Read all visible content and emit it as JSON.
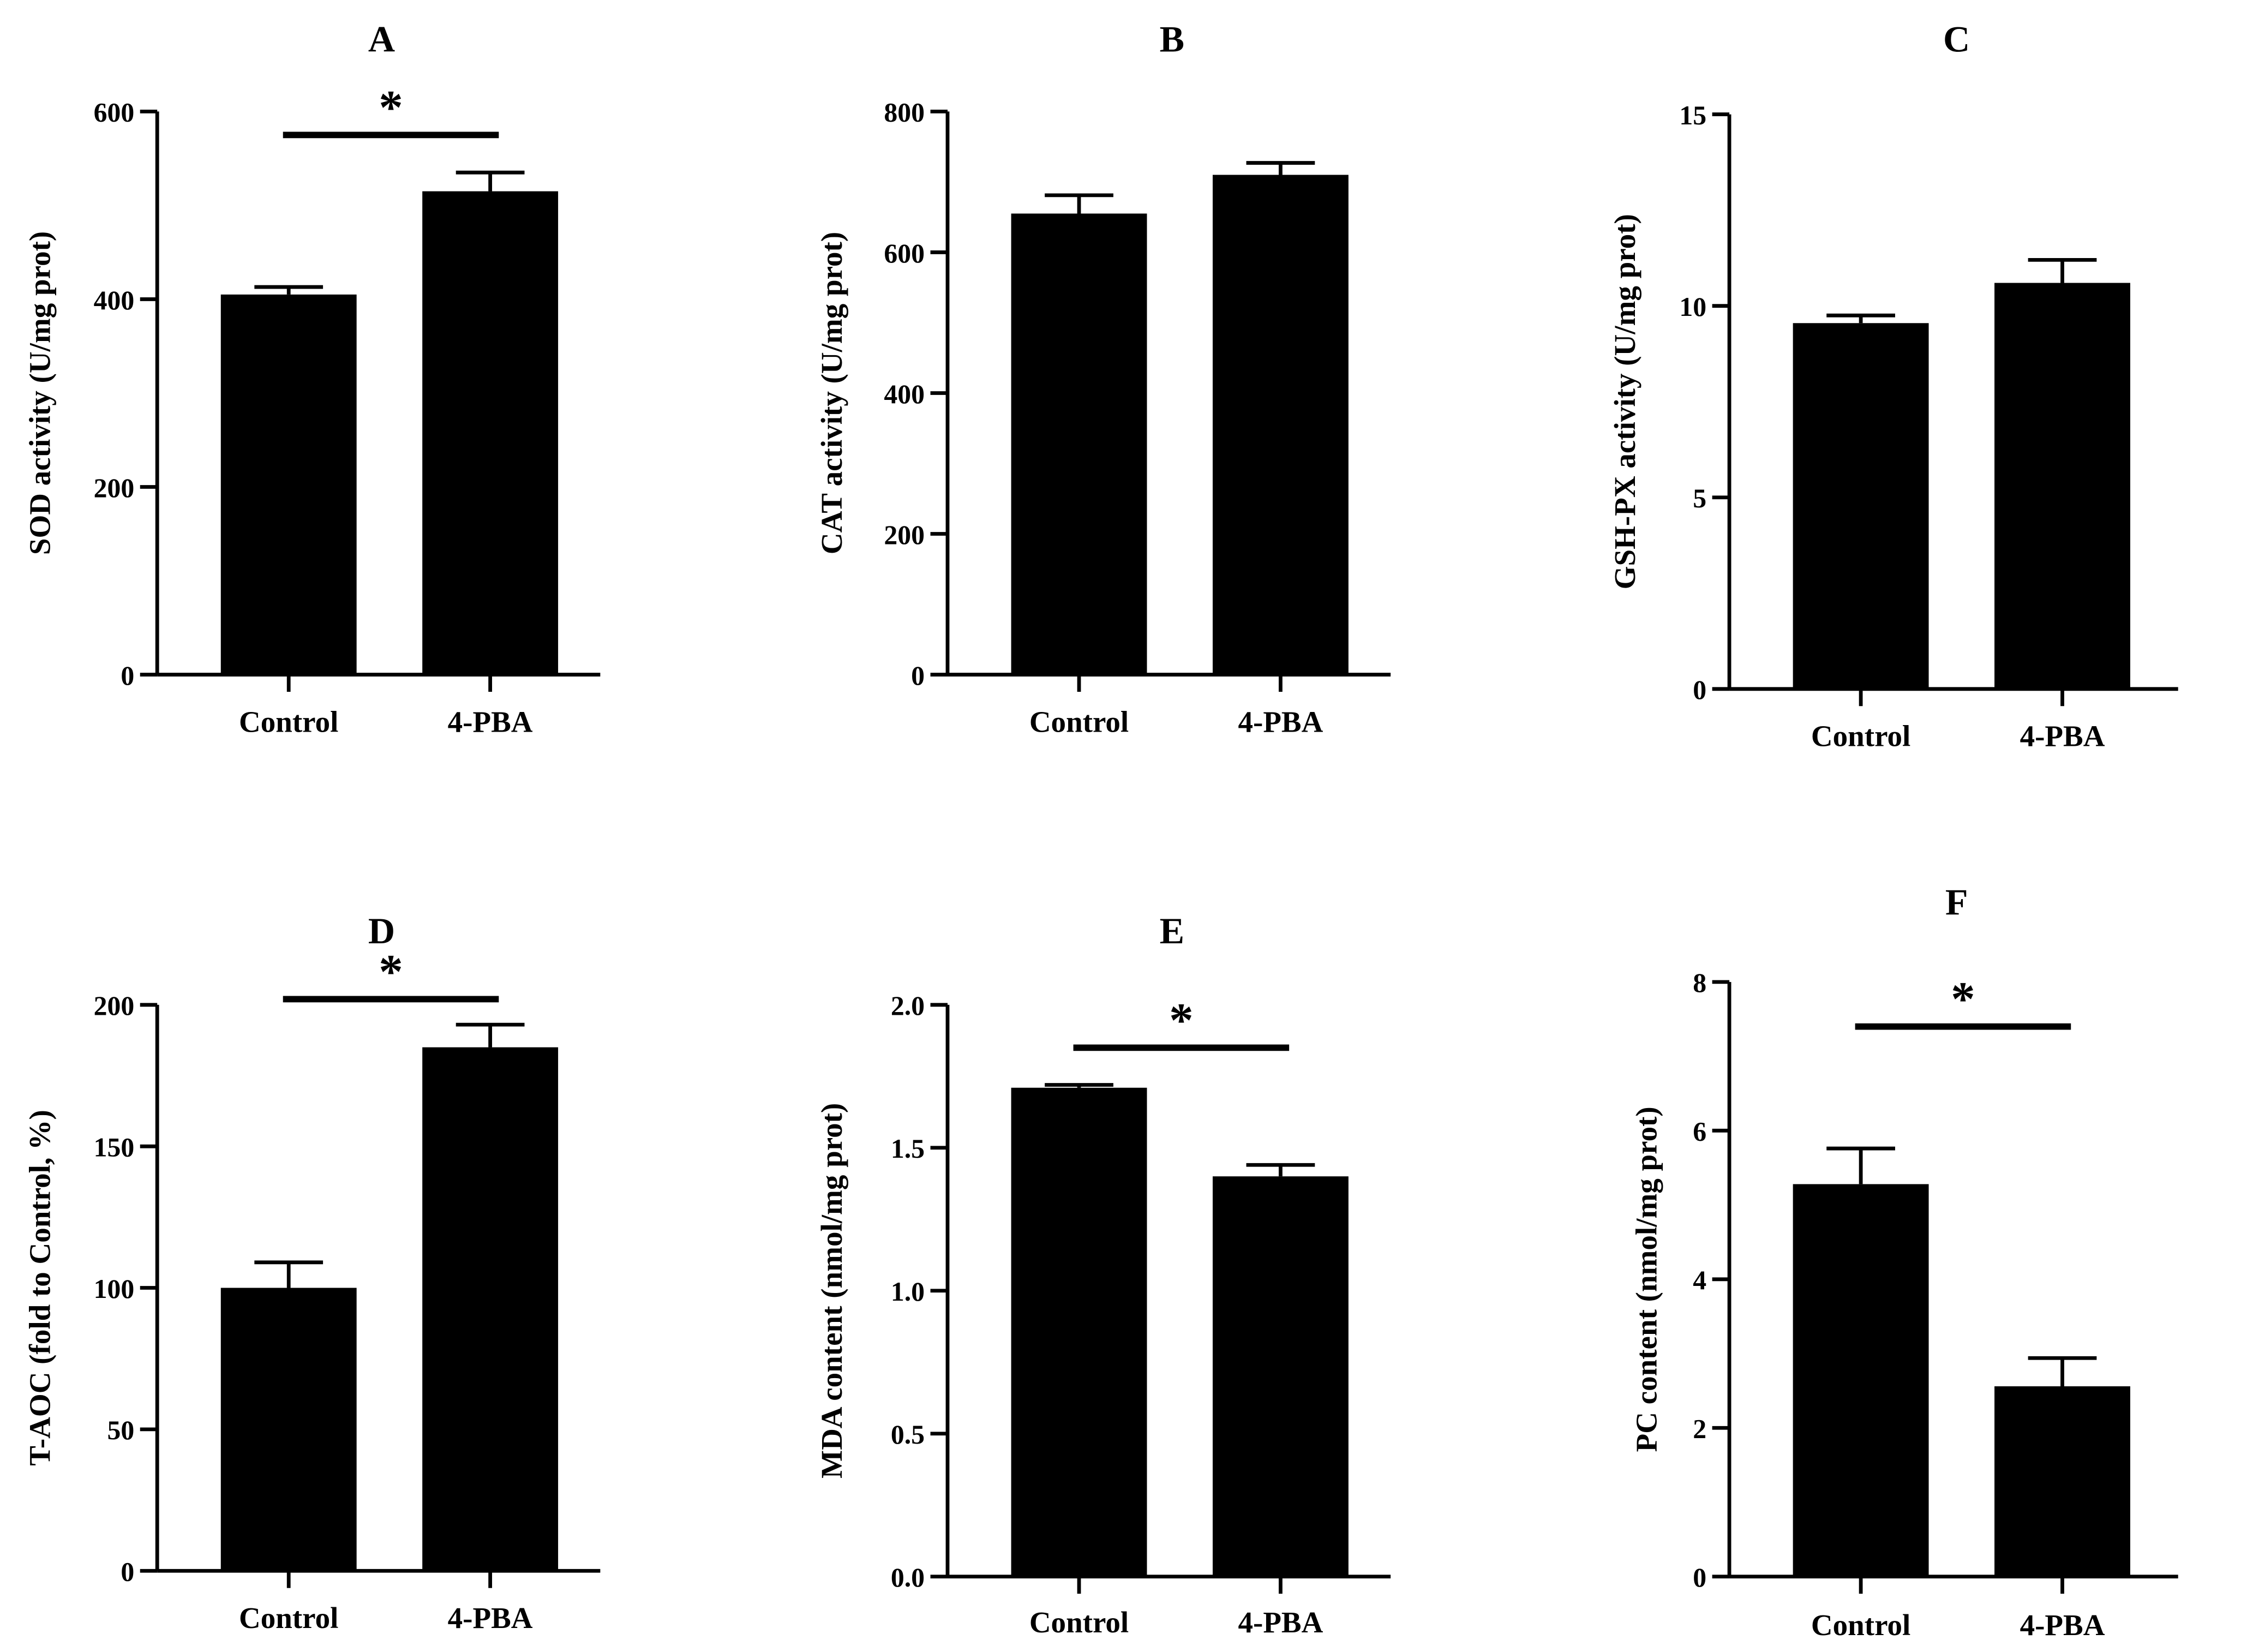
{
  "figure": {
    "panels_count": 6,
    "bar_color": "#000000",
    "background": "#ffffff"
  },
  "chart_data": [
    {
      "panel": "A",
      "type": "bar",
      "title": "A",
      "xlabel": "",
      "ylabel": "SOD activity  (U/mg prot)",
      "categories": [
        "Control",
        "4-PBA"
      ],
      "values": [
        405,
        515
      ],
      "errors": [
        8,
        20
      ],
      "ylim": [
        0,
        600
      ],
      "yticks": [
        0,
        200,
        400,
        600
      ],
      "ytick_labels": [
        "0",
        "200",
        "400",
        "600"
      ],
      "significance": [
        {
          "from": 0,
          "to": 1,
          "label": "*",
          "y": 575
        }
      ],
      "grid": false
    },
    {
      "panel": "B",
      "type": "bar",
      "title": "B",
      "xlabel": "",
      "ylabel": "CAT activity (U/mg prot)",
      "categories": [
        "Control",
        "4-PBA"
      ],
      "values": [
        655,
        710
      ],
      "errors": [
        26,
        17
      ],
      "ylim": [
        0,
        800
      ],
      "yticks": [
        0,
        200,
        400,
        600,
        800
      ],
      "ytick_labels": [
        "0",
        "200",
        "400",
        "600",
        "800"
      ],
      "significance": [],
      "grid": false
    },
    {
      "panel": "C",
      "type": "bar",
      "title": "C",
      "xlabel": "",
      "ylabel": "GSH-PX activity (U/mg prot)",
      "categories": [
        "Control",
        "4-PBA"
      ],
      "values": [
        9.55,
        10.6
      ],
      "errors": [
        0.2,
        0.6
      ],
      "ylim": [
        0,
        15
      ],
      "yticks": [
        0,
        5,
        10,
        15
      ],
      "ytick_labels": [
        "0",
        "5",
        "10",
        "15"
      ],
      "significance": [],
      "grid": false
    },
    {
      "panel": "D",
      "type": "bar",
      "title": "D",
      "xlabel": "",
      "ylabel": "T-AOC (fold to Control, %)",
      "categories": [
        "Control",
        "4-PBA"
      ],
      "values": [
        100,
        185
      ],
      "errors": [
        9,
        8
      ],
      "ylim": [
        0,
        200
      ],
      "yticks": [
        0,
        50,
        100,
        150,
        200
      ],
      "ytick_labels": [
        "0",
        "50",
        "100",
        "150",
        "200"
      ],
      "significance": [
        {
          "from": 0,
          "to": 1,
          "label": "*",
          "y": 202
        }
      ],
      "grid": false
    },
    {
      "panel": "E",
      "type": "bar",
      "title": "E",
      "xlabel": "",
      "ylabel": "MDA content (nmol/mg prot)",
      "categories": [
        "Control",
        "4-PBA"
      ],
      "values": [
        1.71,
        1.4
      ],
      "errors": [
        0.01,
        0.04
      ],
      "ylim": [
        0,
        2.0
      ],
      "yticks": [
        0,
        0.5,
        1.0,
        1.5,
        2.0
      ],
      "ytick_labels": [
        "0.0",
        "0.5",
        "1.0",
        "1.5",
        "2.0"
      ],
      "significance": [
        {
          "from": 0,
          "to": 1,
          "label": "*",
          "y": 1.85
        }
      ],
      "grid": false
    },
    {
      "panel": "F",
      "type": "bar",
      "title": "F",
      "xlabel": "",
      "ylabel": "PC content (nmol/mg prot)",
      "categories": [
        "Control",
        "4-PBA"
      ],
      "values": [
        5.28,
        2.56
      ],
      "errors": [
        0.48,
        0.38
      ],
      "ylim": [
        0,
        8
      ],
      "yticks": [
        0,
        2,
        4,
        6,
        8
      ],
      "ytick_labels": [
        "0",
        "2",
        "4",
        "6",
        "8"
      ],
      "significance": [
        {
          "from": 0,
          "to": 1,
          "label": "*",
          "y": 7.4
        }
      ],
      "grid": false
    }
  ]
}
